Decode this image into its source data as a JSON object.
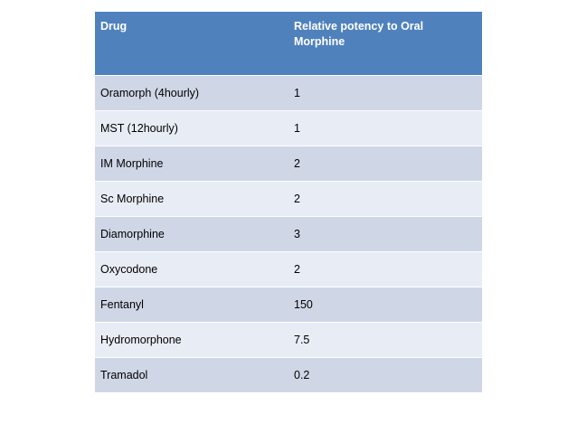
{
  "table": {
    "header": {
      "drug": "Drug",
      "potency": "Relative potency to Oral Morphine"
    },
    "rows": [
      {
        "drug": "Oramorph (4hourly)",
        "potency": "1"
      },
      {
        "drug": "MST (12hourly)",
        "potency": "1"
      },
      {
        "drug": "IM Morphine",
        "potency": "2"
      },
      {
        "drug": "Sc Morphine",
        "potency": "2"
      },
      {
        "drug": "Diamorphine",
        "potency": "3"
      },
      {
        "drug": "Oxycodone",
        "potency": "2"
      },
      {
        "drug": "Fentanyl",
        "potency": "150"
      },
      {
        "drug": "Hydromorphone",
        "potency": "7.5"
      },
      {
        "drug": "Tramadol",
        "potency": "0.2"
      }
    ],
    "colors": {
      "header": "#4f81bd",
      "row_band_dark": "#cfd7e7",
      "row_band_light": "#e8ecf4"
    }
  }
}
